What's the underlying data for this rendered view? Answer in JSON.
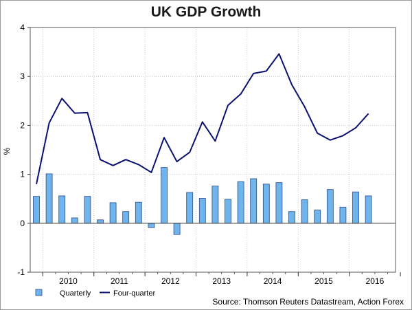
{
  "chart_data": {
    "type": "bar+line",
    "title": "UK GDP Growth",
    "ylabel": "%",
    "xlabel": "",
    "ylim": [
      -1,
      4
    ],
    "yticks": [
      -1,
      0,
      1,
      2,
      3,
      4
    ],
    "year_labels": [
      "2010",
      "2011",
      "2012",
      "2013",
      "2014",
      "2015",
      "2016"
    ],
    "grid": true,
    "legend_position": "bottom-left",
    "source": "Source: Thomson Reuters Datastream, Action Forex",
    "bar_color": "#6fb4ea",
    "line_color": "#0a1070",
    "quarters": [
      "2009 Q4",
      "2010 Q1",
      "2010 Q2",
      "2010 Q3",
      "2010 Q4",
      "2011 Q1",
      "2011 Q2",
      "2011 Q3",
      "2011 Q4",
      "2012 Q1",
      "2012 Q2",
      "2012 Q3",
      "2012 Q4",
      "2013 Q1",
      "2013 Q2",
      "2013 Q3",
      "2013 Q4",
      "2014 Q1",
      "2014 Q2",
      "2014 Q3",
      "2014 Q4",
      "2015 Q1",
      "2015 Q2",
      "2015 Q3",
      "2015 Q4",
      "2016 Q1",
      "2016 Q2"
    ],
    "series": [
      {
        "name": "Quarterly",
        "type": "bar",
        "values": [
          0.55,
          1.01,
          0.56,
          0.11,
          0.55,
          0.07,
          0.42,
          0.24,
          0.43,
          -0.09,
          1.14,
          -0.23,
          0.63,
          0.51,
          0.76,
          0.49,
          0.85,
          0.91,
          0.8,
          0.83,
          0.24,
          0.48,
          0.27,
          0.69,
          0.33,
          0.64,
          0.56
        ]
      },
      {
        "name": "Four-quarter",
        "type": "line",
        "values": [
          0.8,
          2.05,
          2.55,
          2.25,
          2.26,
          1.3,
          1.18,
          1.3,
          1.2,
          1.04,
          1.75,
          1.26,
          1.45,
          2.07,
          1.68,
          2.41,
          2.64,
          3.06,
          3.11,
          3.46,
          2.83,
          2.38,
          1.84,
          1.7,
          1.79,
          1.95,
          2.24
        ]
      }
    ]
  }
}
